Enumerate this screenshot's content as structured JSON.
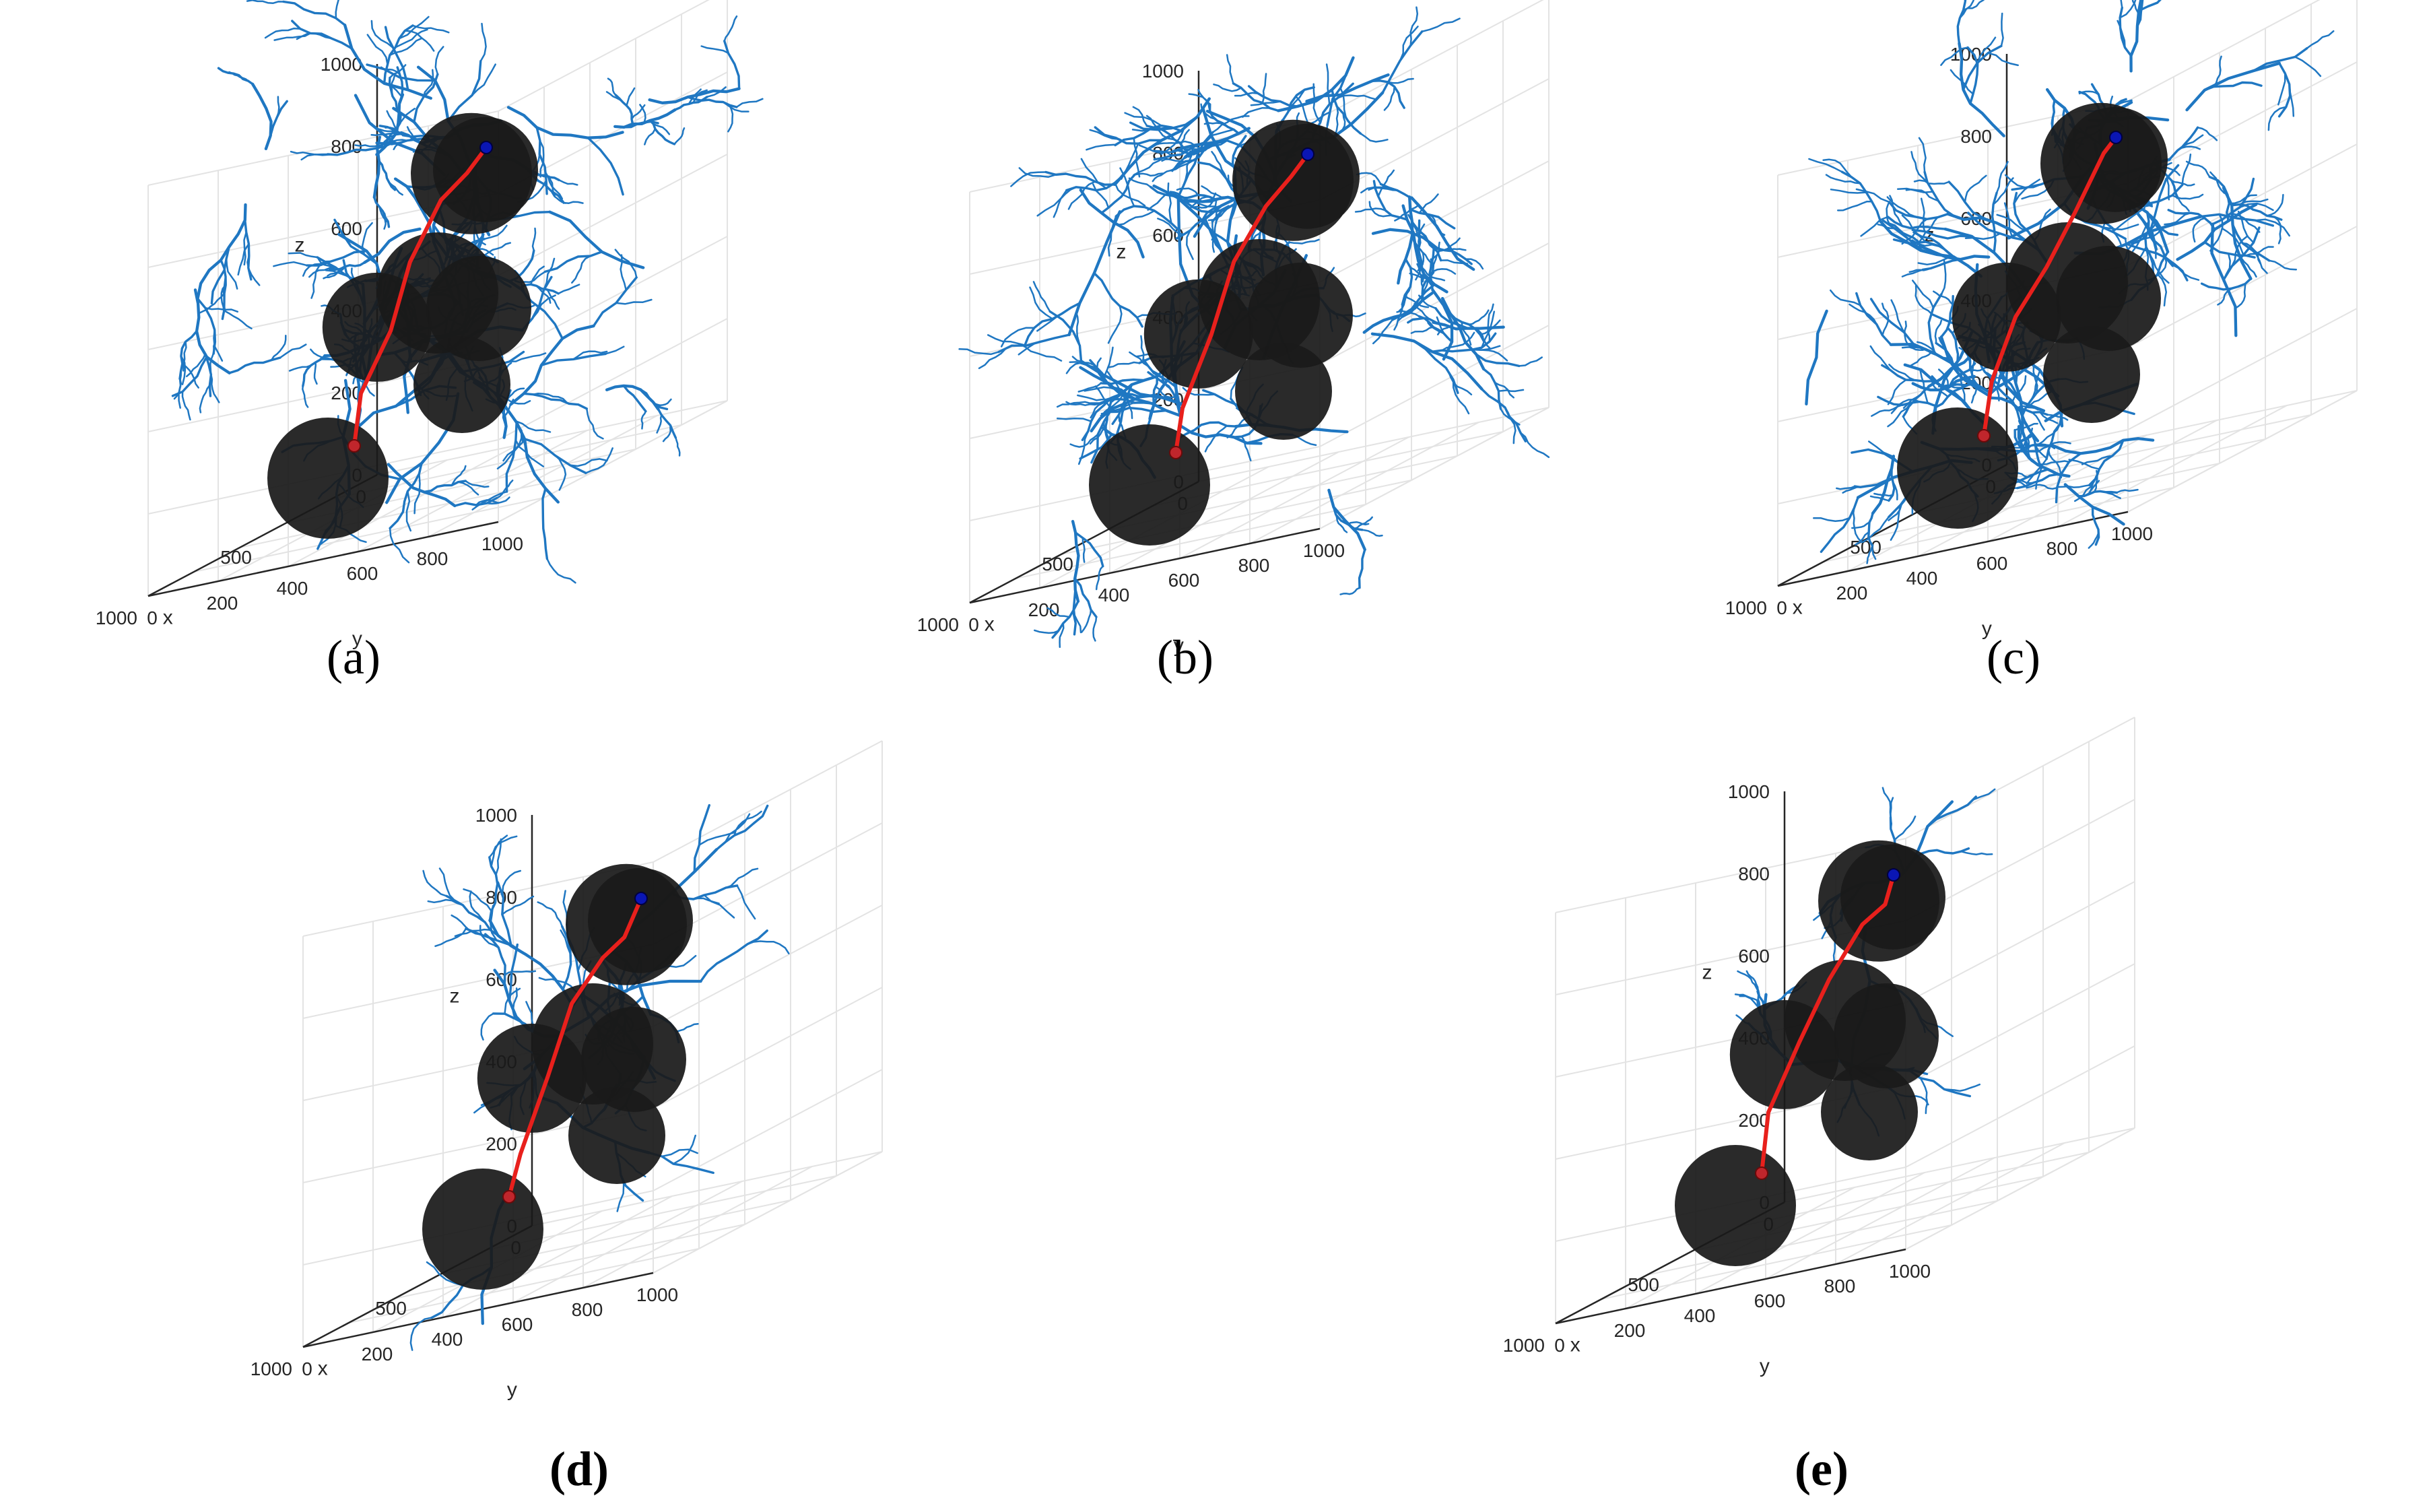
{
  "colors": {
    "tree": "#1f77c2",
    "path": "#e8201c",
    "start": "#c0262c",
    "goal": "#0a16b4",
    "obstacle": "#1a1a1a",
    "grid": "#e3e3e3",
    "axis": "#262626"
  },
  "chart_data": [
    {
      "type": "scatter",
      "panel": "a",
      "caption": "(a)",
      "caption_bold": false,
      "xlabel": "x",
      "ylabel": "y",
      "zlabel": "z",
      "xlim": [
        0,
        1000
      ],
      "ylim": [
        0,
        1000
      ],
      "zlim": [
        0,
        1000
      ],
      "x_ticks": [
        "0",
        "500",
        "1000"
      ],
      "y_ticks": [
        "0",
        "200",
        "400",
        "600",
        "800",
        "1000"
      ],
      "z_ticks": [
        "0",
        "200",
        "400",
        "600",
        "800",
        "1000"
      ],
      "grid": true,
      "tree_density": "very dense",
      "start": [
        100,
        0,
        100
      ],
      "goal": [
        900,
        900,
        900
      ],
      "path": [
        [
          100,
          0,
          100
        ],
        [
          300,
          150,
          260
        ],
        [
          430,
          320,
          420
        ],
        [
          560,
          460,
          600
        ],
        [
          700,
          640,
          760
        ],
        [
          800,
          780,
          830
        ],
        [
          900,
          900,
          900
        ]
      ],
      "obstacles": [
        {
          "center": [
            200,
            400,
            720
          ],
          "radius": 150
        },
        {
          "center": [
            750,
            800,
            820
          ],
          "radius": 130
        },
        {
          "center": [
            230,
            150,
            400
          ],
          "radius": 135
        },
        {
          "center": [
            500,
            500,
            500
          ],
          "radius": 150
        },
        {
          "center": [
            700,
            700,
            300
          ],
          "radius": 120
        },
        {
          "center": [
            550,
            650,
            450
          ],
          "radius": 130
        },
        {
          "center": [
            750,
            350,
            150
          ],
          "radius": 150
        }
      ]
    },
    {
      "type": "scatter",
      "panel": "b",
      "caption": "(b)",
      "caption_bold": false,
      "xlabel": "x",
      "ylabel": "y",
      "zlabel": "z",
      "xlim": [
        0,
        1000
      ],
      "ylim": [
        0,
        1000
      ],
      "zlim": [
        0,
        1000
      ],
      "x_ticks": [
        "0",
        "500",
        "1000"
      ],
      "y_ticks": [
        "0",
        "200",
        "400",
        "600",
        "800",
        "1000"
      ],
      "z_ticks": [
        "0",
        "200",
        "400",
        "600",
        "800",
        "1000"
      ],
      "grid": true,
      "tree_density": "very dense",
      "start": [
        100,
        0,
        100
      ],
      "goal": [
        900,
        900,
        900
      ],
      "path": [
        [
          100,
          0,
          100
        ],
        [
          300,
          150,
          240
        ],
        [
          450,
          330,
          430
        ],
        [
          580,
          480,
          620
        ],
        [
          700,
          650,
          760
        ],
        [
          820,
          800,
          840
        ],
        [
          900,
          900,
          900
        ]
      ],
      "obstacles": [
        {
          "center": [
            200,
            400,
            720
          ],
          "radius": 150
        },
        {
          "center": [
            750,
            800,
            820
          ],
          "radius": 130
        },
        {
          "center": [
            230,
            150,
            400
          ],
          "radius": 135
        },
        {
          "center": [
            500,
            500,
            500
          ],
          "radius": 150
        },
        {
          "center": [
            700,
            700,
            300
          ],
          "radius": 120
        },
        {
          "center": [
            550,
            650,
            450
          ],
          "radius": 130
        },
        {
          "center": [
            750,
            350,
            150
          ],
          "radius": 150
        }
      ]
    },
    {
      "type": "scatter",
      "panel": "c",
      "caption": "(c)",
      "caption_bold": false,
      "xlabel": "x",
      "ylabel": "y",
      "zlabel": "z",
      "xlim": [
        0,
        1000
      ],
      "ylim": [
        0,
        1000
      ],
      "zlim": [
        0,
        1000
      ],
      "x_ticks": [
        "0",
        "500",
        "1000"
      ],
      "y_ticks": [
        "0",
        "200",
        "400",
        "600",
        "800",
        "1000"
      ],
      "z_ticks": [
        "0",
        "200",
        "400",
        "600",
        "800",
        "1000"
      ],
      "grid": true,
      "tree_density": "very dense",
      "start": [
        100,
        0,
        100
      ],
      "goal": [
        900,
        900,
        900
      ],
      "path": [
        [
          100,
          0,
          100
        ],
        [
          280,
          140,
          260
        ],
        [
          420,
          300,
          430
        ],
        [
          560,
          480,
          560
        ],
        [
          680,
          640,
          700
        ],
        [
          800,
          800,
          850
        ],
        [
          900,
          900,
          900
        ]
      ],
      "obstacles": [
        {
          "center": [
            200,
            400,
            720
          ],
          "radius": 150
        },
        {
          "center": [
            750,
            800,
            820
          ],
          "radius": 130
        },
        {
          "center": [
            230,
            150,
            400
          ],
          "radius": 135
        },
        {
          "center": [
            500,
            500,
            500
          ],
          "radius": 150
        },
        {
          "center": [
            700,
            700,
            300
          ],
          "radius": 120
        },
        {
          "center": [
            550,
            650,
            450
          ],
          "radius": 130
        },
        {
          "center": [
            750,
            350,
            150
          ],
          "radius": 150
        }
      ]
    },
    {
      "type": "scatter",
      "panel": "d",
      "caption": "(d)",
      "caption_bold": true,
      "xlabel": "x",
      "ylabel": "y",
      "zlabel": "z",
      "xlim": [
        0,
        1000
      ],
      "ylim": [
        0,
        1000
      ],
      "zlim": [
        0,
        1000
      ],
      "x_ticks": [
        "0",
        "500",
        "1000"
      ],
      "y_ticks": [
        "0",
        "200",
        "400",
        "600",
        "800",
        "1000"
      ],
      "z_ticks": [
        "0",
        "200",
        "400",
        "600",
        "800",
        "1000"
      ],
      "grid": true,
      "tree_density": "sparse",
      "start": [
        100,
        0,
        100
      ],
      "goal": [
        900,
        900,
        900
      ],
      "path": [
        [
          100,
          0,
          100
        ],
        [
          280,
          150,
          230
        ],
        [
          420,
          320,
          430
        ],
        [
          560,
          480,
          620
        ],
        [
          700,
          660,
          740
        ],
        [
          820,
          800,
          800
        ],
        [
          900,
          900,
          900
        ]
      ],
      "obstacles": [
        {
          "center": [
            200,
            400,
            720
          ],
          "radius": 150
        },
        {
          "center": [
            750,
            800,
            820
          ],
          "radius": 130
        },
        {
          "center": [
            230,
            150,
            400
          ],
          "radius": 135
        },
        {
          "center": [
            500,
            500,
            500
          ],
          "radius": 150
        },
        {
          "center": [
            700,
            700,
            300
          ],
          "radius": 120
        },
        {
          "center": [
            550,
            650,
            450
          ],
          "radius": 130
        },
        {
          "center": [
            750,
            350,
            150
          ],
          "radius": 150
        }
      ]
    },
    {
      "type": "scatter",
      "panel": "e",
      "caption": "(e)",
      "caption_bold": true,
      "xlabel": "x",
      "ylabel": "y",
      "zlabel": "z",
      "xlim": [
        0,
        1000
      ],
      "ylim": [
        0,
        1000
      ],
      "zlim": [
        0,
        1000
      ],
      "x_ticks": [
        "0",
        "500",
        "1000"
      ],
      "y_ticks": [
        "0",
        "200",
        "400",
        "600",
        "800",
        "1000"
      ],
      "z_ticks": [
        "0",
        "200",
        "400",
        "600",
        "800",
        "1000"
      ],
      "grid": true,
      "tree_density": "very sparse",
      "start": [
        100,
        0,
        100
      ],
      "goal": [
        900,
        900,
        900
      ],
      "path": [
        [
          100,
          0,
          100
        ],
        [
          300,
          150,
          280
        ],
        [
          440,
          330,
          460
        ],
        [
          570,
          500,
          620
        ],
        [
          700,
          680,
          760
        ],
        [
          830,
          830,
          820
        ],
        [
          900,
          900,
          900
        ]
      ],
      "obstacles": [
        {
          "center": [
            200,
            400,
            720
          ],
          "radius": 150
        },
        {
          "center": [
            750,
            800,
            820
          ],
          "radius": 130
        },
        {
          "center": [
            230,
            150,
            400
          ],
          "radius": 135
        },
        {
          "center": [
            500,
            500,
            500
          ],
          "radius": 150
        },
        {
          "center": [
            700,
            700,
            300
          ],
          "radius": 120
        },
        {
          "center": [
            550,
            650,
            450
          ],
          "radius": 130
        },
        {
          "center": [
            750,
            350,
            150
          ],
          "radius": 150
        }
      ]
    }
  ]
}
